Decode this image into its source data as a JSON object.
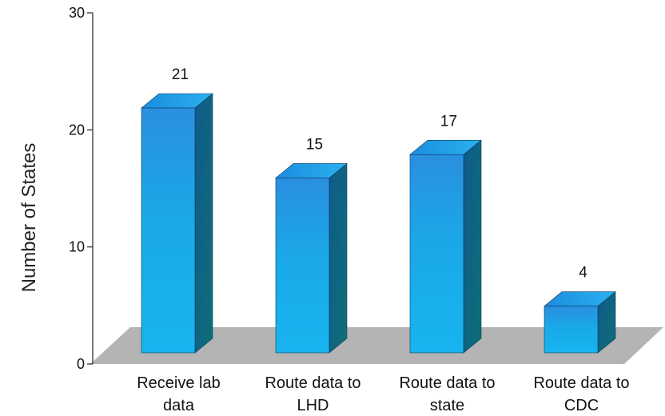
{
  "chart_data": {
    "type": "bar",
    "style": "3d",
    "categories": [
      [
        "Receive lab",
        "data"
      ],
      [
        "Route data to",
        "LHD"
      ],
      [
        "Route data to",
        "state"
      ],
      [
        "Route data to",
        "CDC"
      ]
    ],
    "values": [
      21,
      15,
      17,
      4
    ],
    "data_labels": [
      "21",
      "15",
      "17",
      "4"
    ],
    "ylabel": "Number of States",
    "ylim": [
      0,
      30
    ],
    "yticks": [
      "0",
      "10",
      "20",
      "30"
    ],
    "grid": false,
    "legend": "none"
  },
  "colors": {
    "bar_front_top": "#2a8fe0",
    "bar_front_mid": "#1aa8e8",
    "bar_front_bottom": "#18b4f0",
    "bar_top": "#1e9ae6",
    "bar_side": "#0f5a8c",
    "floor": "#b4b4b4",
    "axis": "#333333"
  }
}
